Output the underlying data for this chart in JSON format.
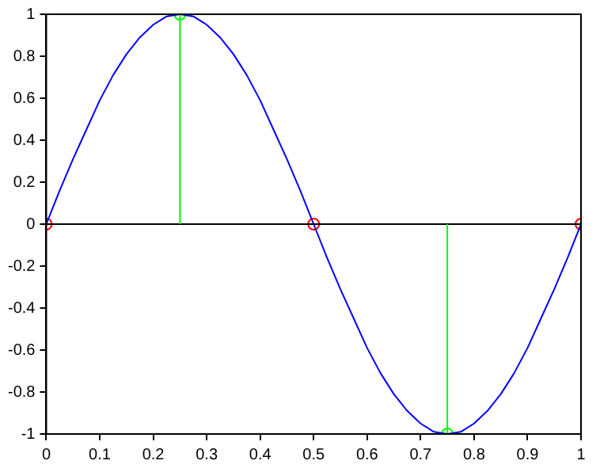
{
  "chart_data": {
    "type": "line",
    "xlim": [
      0,
      1
    ],
    "ylim": [
      -1,
      1
    ],
    "xticks": [
      0,
      0.1,
      0.2,
      0.3,
      0.4,
      0.5,
      0.6,
      0.7,
      0.8,
      0.9,
      1
    ],
    "yticks": [
      -1,
      -0.8,
      -0.6,
      -0.4,
      -0.2,
      0,
      0.2,
      0.4,
      0.6,
      0.8,
      1
    ],
    "grid": false,
    "legend": false,
    "ref_lines": [
      {
        "axis": "y",
        "value": 0,
        "color": "#000000"
      }
    ],
    "series": [
      {
        "type": "line",
        "color": "#0000ff",
        "marker": "none",
        "x": [
          0,
          0.025,
          0.05,
          0.075,
          0.1,
          0.125,
          0.15,
          0.175,
          0.2,
          0.225,
          0.25,
          0.275,
          0.3,
          0.325,
          0.35,
          0.375,
          0.4,
          0.425,
          0.45,
          0.475,
          0.5,
          0.525,
          0.55,
          0.575,
          0.6,
          0.625,
          0.65,
          0.675,
          0.7,
          0.725,
          0.75,
          0.775,
          0.8,
          0.825,
          0.85,
          0.875,
          0.9,
          0.925,
          0.95,
          0.975,
          1
        ],
        "values": [
          0,
          0.16,
          0.31,
          0.45,
          0.59,
          0.71,
          0.81,
          0.89,
          0.95,
          0.99,
          1,
          0.99,
          0.95,
          0.89,
          0.81,
          0.71,
          0.59,
          0.45,
          0.31,
          0.16,
          0,
          -0.16,
          -0.31,
          -0.45,
          -0.59,
          -0.71,
          -0.81,
          -0.89,
          -0.95,
          -0.99,
          -1,
          -0.99,
          -0.95,
          -0.89,
          -0.81,
          -0.71,
          -0.59,
          -0.45,
          -0.31,
          -0.16,
          0
        ]
      },
      {
        "type": "scatter",
        "color": "#ff0000",
        "marker": "circle",
        "x": [
          0,
          0.5,
          1
        ],
        "values": [
          0,
          0,
          0
        ]
      },
      {
        "type": "lollipop",
        "color": "#00ff00",
        "marker": "circle",
        "x": [
          0.25,
          0.75
        ],
        "values": [
          1,
          -1
        ]
      }
    ]
  }
}
